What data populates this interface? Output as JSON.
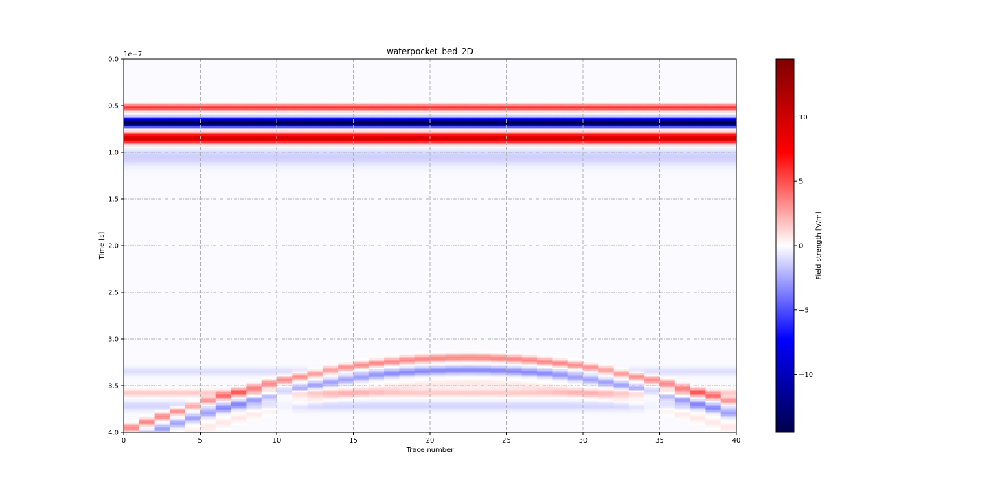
{
  "chart_data": {
    "type": "heatmap",
    "title": "waterpocket_bed_2D",
    "xlabel": "Trace number",
    "ylabel": "Time [s]",
    "y_offset_text": "1e−7",
    "xlim": [
      0,
      40
    ],
    "ylim": [
      4.0,
      0.0
    ],
    "y_inverted": true,
    "x_ticks": [
      0,
      5,
      10,
      15,
      20,
      25,
      30,
      35,
      40
    ],
    "x_tick_labels": [
      "0",
      "5",
      "10",
      "15",
      "20",
      "25",
      "30",
      "35",
      "40"
    ],
    "y_ticks": [
      0.0,
      0.5,
      1.0,
      1.5,
      2.0,
      2.5,
      3.0,
      3.5,
      4.0
    ],
    "y_tick_labels": [
      "0.0",
      "0.5",
      "1.0",
      "1.5",
      "2.0",
      "2.5",
      "3.0",
      "3.5",
      "4.0"
    ],
    "grid": true,
    "n_traces": 40,
    "colormap": "seismic",
    "colormap_stops": [
      "#00004c",
      "#0000ff",
      "#ffffff",
      "#ff0000",
      "#7f0000"
    ],
    "colorbar": {
      "label": "Field strength [V/m]",
      "range": [
        -14.5,
        14.5
      ],
      "ticks": [
        10,
        5,
        0,
        -5,
        -10
      ],
      "tick_labels": [
        "10",
        "5",
        "0",
        "−5",
        "−10"
      ]
    },
    "direct_wave": {
      "description_units": "time in 1e-7 s, amplitude in V/m",
      "components": [
        {
          "t": 0.52,
          "amp": 6.0,
          "width": 0.035
        },
        {
          "t": 0.68,
          "amp": -14.5,
          "width": 0.045
        },
        {
          "t": 0.85,
          "amp": 10.0,
          "width": 0.055
        },
        {
          "t": 1.05,
          "amp": -1.2,
          "width": 0.09
        }
      ]
    },
    "hyperbola": {
      "apex_trace": 22.5,
      "apex_time": 3.2,
      "velocity_traces_per_unit": 60,
      "components": [
        {
          "dt": 0.0,
          "amp": 3.5,
          "width": 0.04
        },
        {
          "dt": 0.13,
          "amp": -2.5,
          "width": 0.04
        },
        {
          "dt": 0.28,
          "amp": 0.8,
          "width": 0.05
        }
      ]
    },
    "bed_reflection": {
      "components": [
        {
          "t": 3.35,
          "amp": -0.8,
          "width": 0.04
        },
        {
          "t": 3.58,
          "amp": 1.6,
          "width": 0.04
        },
        {
          "t": 3.72,
          "amp": -1.0,
          "width": 0.05
        }
      ]
    }
  }
}
